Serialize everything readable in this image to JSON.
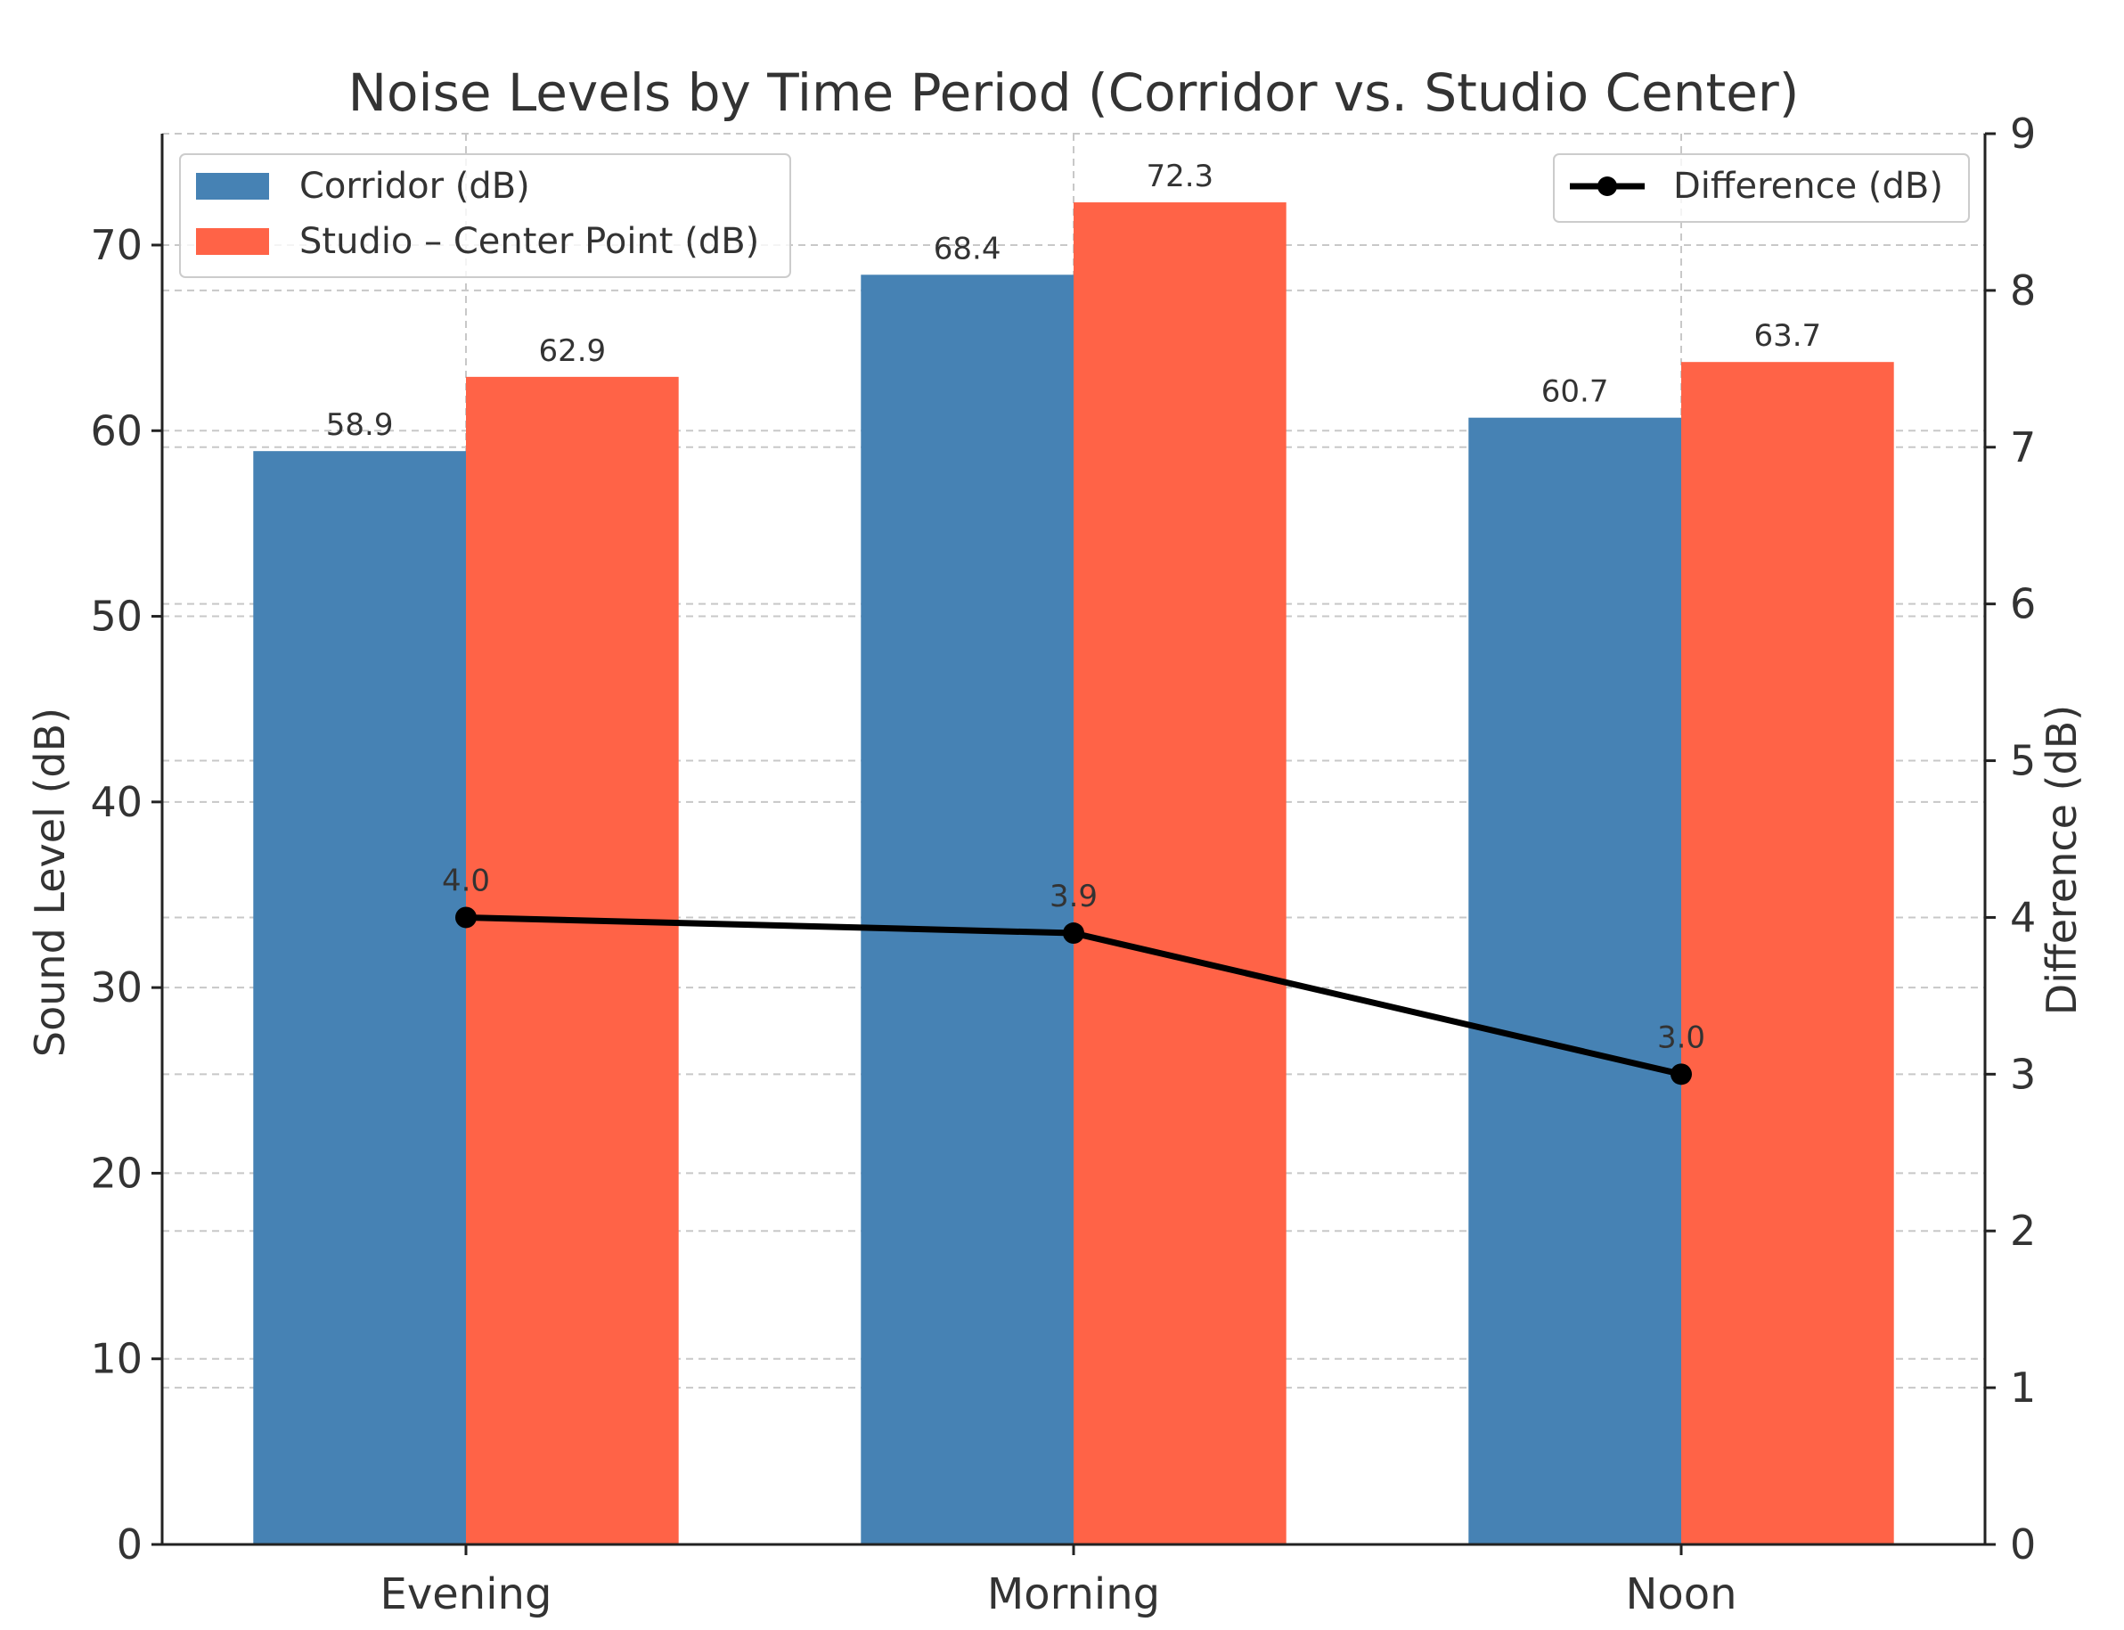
{
  "chart_data": {
    "type": "bar",
    "title": "Noise Levels by Time Period (Corridor vs. Studio Center)",
    "categories": [
      "Evening",
      "Morning",
      "Noon"
    ],
    "series": [
      {
        "name": "Corridor (dB)",
        "color": "#4682b4",
        "values": [
          58.9,
          68.4,
          60.7
        ],
        "labels": [
          "58.9",
          "68.4",
          "60.7"
        ]
      },
      {
        "name": "Studio – Center Point (dB)",
        "color": "#ff6347",
        "values": [
          62.9,
          72.3,
          63.7
        ],
        "labels": [
          "62.9",
          "72.3",
          "63.7"
        ]
      }
    ],
    "line_series": {
      "name": "Difference (dB)",
      "color": "#000000",
      "axis": "right",
      "values": [
        4.0,
        3.9,
        3.0
      ],
      "labels": [
        "4.0",
        "3.9",
        "3.0"
      ]
    },
    "xlabel": "",
    "ylabel": "Sound Level (dB)",
    "y2label": "Difference (dB)",
    "ylim": [
      0,
      76
    ],
    "y2lim": [
      0,
      9
    ],
    "yticks": [
      0,
      10,
      20,
      30,
      40,
      50,
      60,
      70
    ],
    "y2ticks": [
      0,
      1,
      2,
      3,
      4,
      5,
      6,
      7,
      8,
      9
    ],
    "grid": true,
    "legend_left": "top-left",
    "legend_right": "top-right"
  }
}
